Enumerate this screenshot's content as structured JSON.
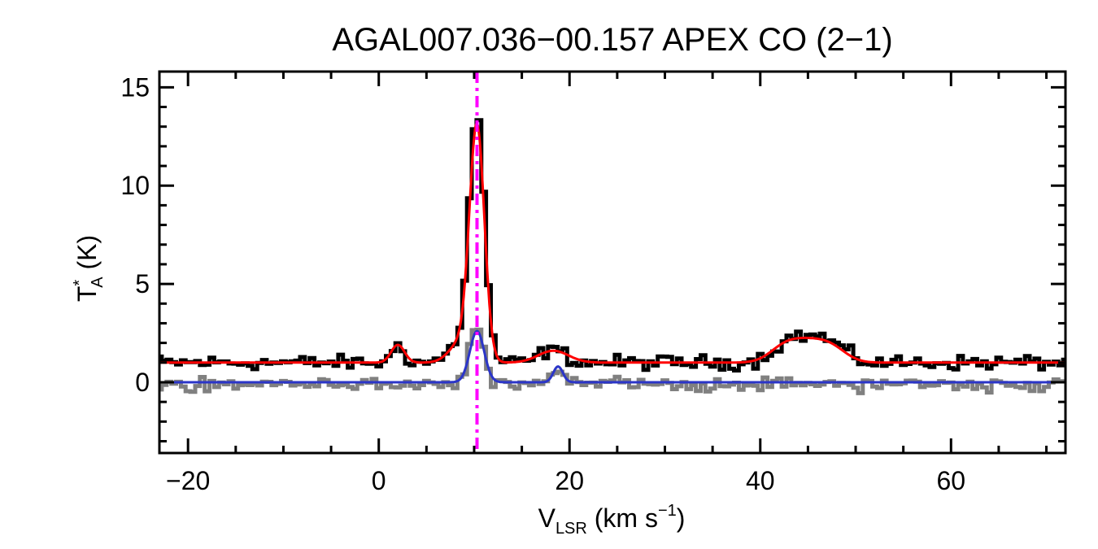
{
  "chart_data": {
    "type": "line",
    "title": "AGAL007.036−00.157  APEX CO (2−1)",
    "xlabel": {
      "main": "V",
      "sub": "LSR",
      "unit_pre": " (km s",
      "sup": "−1",
      "unit_post": ")"
    },
    "ylabel": {
      "main": "T",
      "sup": "*",
      "sub": "A",
      "unit": " (K)"
    },
    "xlim": [
      -23,
      72
    ],
    "ylim": [
      -3.6,
      15.8
    ],
    "xticks": [
      -20,
      0,
      20,
      40,
      60
    ],
    "xtick_labels": [
      "−20",
      "0",
      "20",
      "40",
      "60"
    ],
    "yticks": [
      0,
      5,
      10,
      15
    ],
    "ytick_labels": [
      "0",
      "5",
      "10",
      "15"
    ],
    "grid": false,
    "legend": "none",
    "colors": {
      "spectrum": "#000000",
      "model": "#ff0000",
      "residual": "#808080",
      "residual_model": "#2b35c8",
      "marker": "#ff00ff"
    },
    "source_velocity": 10.3,
    "series": [
      {
        "role": "spectrum",
        "style": "histogram",
        "baseline": 1.0,
        "noise": 0.18,
        "components": [
          {
            "center": 10.3,
            "amplitude": 12.3,
            "sigma": 0.8
          },
          {
            "center": 8.6,
            "amplitude": 1.0,
            "sigma": 1.2
          },
          {
            "center": 2.1,
            "amplitude": 1.0,
            "sigma": 0.55
          },
          {
            "center": 18.2,
            "amplitude": 0.65,
            "sigma": 1.3
          },
          {
            "center": 42.8,
            "amplitude": 0.9,
            "sigma": 1.6
          },
          {
            "center": 45.2,
            "amplitude": 0.8,
            "sigma": 1.6
          },
          {
            "center": 47.5,
            "amplitude": 0.8,
            "sigma": 1.6
          }
        ]
      },
      {
        "role": "model",
        "style": "line",
        "baseline": 1.0,
        "components": [
          {
            "center": 10.3,
            "amplitude": 11.8,
            "sigma": 0.78
          },
          {
            "center": 8.6,
            "amplitude": 1.0,
            "sigma": 1.2
          },
          {
            "center": 2.0,
            "amplitude": 0.9,
            "sigma": 0.7
          },
          {
            "center": 18.3,
            "amplitude": 0.6,
            "sigma": 1.6
          },
          {
            "center": 42.6,
            "amplitude": 0.8,
            "sigma": 1.6
          },
          {
            "center": 45.0,
            "amplitude": 0.75,
            "sigma": 1.6
          },
          {
            "center": 47.4,
            "amplitude": 0.75,
            "sigma": 1.6
          }
        ]
      },
      {
        "role": "residual",
        "style": "histogram",
        "baseline": -0.1,
        "noise": 0.17,
        "components": [
          {
            "center": 10.3,
            "amplitude": 2.8,
            "sigma": 0.75
          },
          {
            "center": 18.8,
            "amplitude": 0.8,
            "sigma": 0.45
          }
        ]
      },
      {
        "role": "residual_model",
        "style": "line",
        "baseline": 0.0,
        "components": [
          {
            "center": 10.3,
            "amplitude": 2.6,
            "sigma": 0.75
          },
          {
            "center": 18.8,
            "amplitude": 0.8,
            "sigma": 0.5
          }
        ]
      }
    ]
  }
}
